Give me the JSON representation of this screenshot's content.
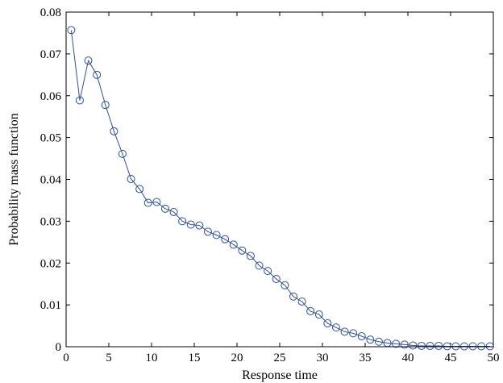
{
  "chart_data": {
    "type": "line",
    "title": "",
    "xlabel": "Response time",
    "ylabel": "Probability mass function",
    "xlim": [
      0,
      50
    ],
    "ylim": [
      0,
      0.08
    ],
    "x_ticks": [
      0,
      5,
      10,
      15,
      20,
      25,
      30,
      35,
      40,
      45,
      50
    ],
    "x_tick_labels": [
      "0",
      "5",
      "10",
      "15",
      "20",
      "25",
      "30",
      "35",
      "40",
      "45",
      "50"
    ],
    "y_ticks": [
      0,
      0.01,
      0.02,
      0.03,
      0.04,
      0.05,
      0.06,
      0.07,
      0.08
    ],
    "y_tick_labels": [
      "0",
      "0.01",
      "0.02",
      "0.03",
      "0.04",
      "0.05",
      "0.06",
      "0.07",
      "0.08"
    ],
    "grid": false,
    "marker": "circle",
    "line_color": "#2e4f9e",
    "x": [
      0.6,
      1.6,
      2.6,
      3.6,
      4.6,
      5.6,
      6.6,
      7.6,
      8.6,
      9.6,
      10.6,
      11.6,
      12.6,
      13.6,
      14.6,
      15.6,
      16.6,
      17.6,
      18.6,
      19.6,
      20.6,
      21.6,
      22.6,
      23.6,
      24.6,
      25.6,
      26.6,
      27.6,
      28.6,
      29.6,
      30.6,
      31.6,
      32.6,
      33.6,
      34.6,
      35.6,
      36.6,
      37.6,
      38.6,
      39.6,
      40.6,
      41.6,
      42.6,
      43.6,
      44.6,
      45.6,
      46.6,
      47.6,
      48.6,
      49.6
    ],
    "series": [
      {
        "values": [
          0.0757,
          0.0589,
          0.0684,
          0.065,
          0.0578,
          0.0515,
          0.0461,
          0.0401,
          0.0377,
          0.0344,
          0.0346,
          0.033,
          0.0322,
          0.03,
          0.0292,
          0.029,
          0.0275,
          0.0267,
          0.0257,
          0.0244,
          0.023,
          0.0217,
          0.0194,
          0.0181,
          0.0162,
          0.0147,
          0.012,
          0.0108,
          0.0085,
          0.0077,
          0.0056,
          0.0046,
          0.0036,
          0.0032,
          0.0025,
          0.0017,
          0.0012,
          0.0009,
          0.0007,
          0.0005,
          0.0003,
          0.0002,
          0.0002,
          0.0002,
          0.0001,
          0.0001,
          0.0001,
          0.0001,
          0.0001,
          0.0001
        ]
      }
    ]
  }
}
